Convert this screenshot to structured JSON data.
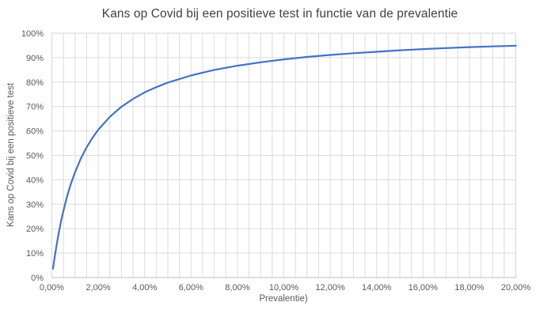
{
  "chart_data": {
    "type": "line",
    "title": "Kans op Covid bij een positieve test in functie van de prevalentie",
    "xlabel": "Prevalentie)",
    "ylabel": "Kans op Covid bij een positieve test",
    "xlim": [
      0,
      20
    ],
    "ylim": [
      0,
      100
    ],
    "x_unit": "%",
    "y_unit": "%",
    "x_tick_values": [
      0,
      2,
      4,
      6,
      8,
      10,
      12,
      14,
      16,
      18,
      20
    ],
    "x_tick_labels": [
      "0,00%",
      "2,00%",
      "4,00%",
      "6,00%",
      "8,00%",
      "10,00%",
      "12,00%",
      "14,00%",
      "16,00%",
      "18,00%",
      "20,00%"
    ],
    "y_tick_values": [
      0,
      10,
      20,
      30,
      40,
      50,
      60,
      70,
      80,
      90,
      100
    ],
    "y_tick_labels": [
      "0%",
      "10%",
      "20%",
      "30%",
      "40%",
      "50%",
      "60%",
      "70%",
      "80%",
      "90%",
      "100%"
    ],
    "grid": {
      "horizontal_major_step": 10,
      "vertical_minor_step": 0.5
    },
    "legend": "none",
    "series": [
      {
        "x": [
          0.05,
          0.1,
          0.2,
          0.3,
          0.4,
          0.5,
          0.6,
          0.7,
          0.8,
          0.9,
          1,
          1.25,
          1.5,
          1.75,
          2,
          2.5,
          3,
          3.5,
          4,
          4.5,
          5,
          6,
          7,
          8,
          9,
          10,
          11,
          12,
          13,
          14,
          15,
          16,
          17,
          18,
          19,
          20
        ],
        "y": [
          3.6,
          7.0,
          13.1,
          18.4,
          23.2,
          27.4,
          31.2,
          34.6,
          37.7,
          40.5,
          43.1,
          48.7,
          53.3,
          57.2,
          60.5,
          65.8,
          69.9,
          73.1,
          75.8,
          77.9,
          79.8,
          82.7,
          85.0,
          86.7,
          88.1,
          89.3,
          90.3,
          91.1,
          91.8,
          92.4,
          93.0,
          93.5,
          93.9,
          94.3,
          94.6,
          94.9
        ]
      }
    ]
  },
  "colors": {
    "line": "#4472C4",
    "gridline": "#DCDCDC",
    "plot_border": "#D6D6D6",
    "axis_line": "#BFBFBF",
    "tick_label": "#595959",
    "axis_title": "#595959",
    "title": "#404040"
  }
}
